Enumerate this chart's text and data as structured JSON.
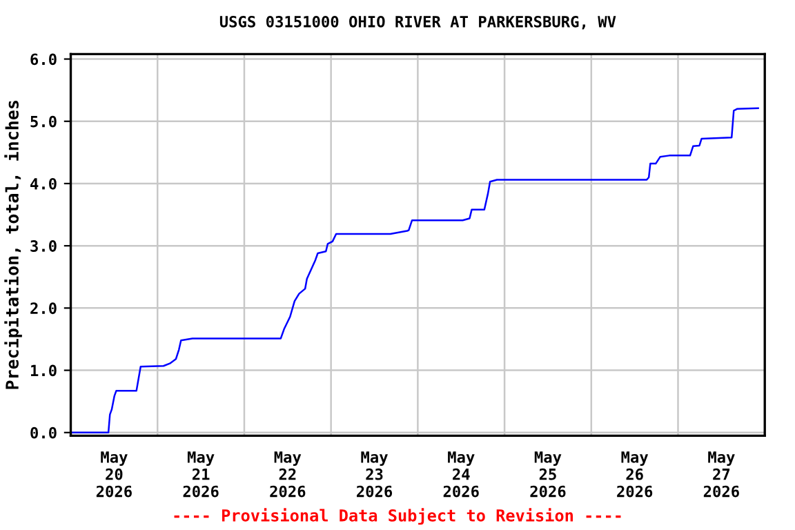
{
  "chart_data": {
    "type": "line",
    "title": "USGS 03151000 OHIO RIVER AT PARKERSBURG, WV",
    "ylabel": "Precipitation, total, inches",
    "annotations": [
      "---- Provisional Data Subject to Revision ----"
    ],
    "x": [
      "2026-05-20T00:15",
      "2026-05-20T10:25",
      "2026-05-20T10:50",
      "2026-05-20T11:20",
      "2026-05-20T12:05",
      "2026-05-20T12:35",
      "2026-05-20T18:10",
      "2026-05-20T18:35",
      "2026-05-20T19:20",
      "2026-05-21T01:40",
      "2026-05-21T03:25",
      "2026-05-21T05:05",
      "2026-05-21T05:55",
      "2026-05-21T06:30",
      "2026-05-21T09:40",
      "2026-05-22T10:05",
      "2026-05-22T11:00",
      "2026-05-22T12:40",
      "2026-05-22T13:55",
      "2026-05-22T15:10",
      "2026-05-22T16:50",
      "2026-05-22T17:20",
      "2026-05-22T18:30",
      "2026-05-22T19:40",
      "2026-05-22T20:20",
      "2026-05-22T22:35",
      "2026-05-22T23:05",
      "2026-05-23T00:25",
      "2026-05-23T01:25",
      "2026-05-23T16:25",
      "2026-05-23T21:05",
      "2026-05-23T21:30",
      "2026-05-23T22:25",
      "2026-05-24T12:25",
      "2026-05-24T14:20",
      "2026-05-24T14:55",
      "2026-05-24T18:25",
      "2026-05-24T19:25",
      "2026-05-24T20:00",
      "2026-05-24T21:55",
      "2026-05-26T15:20",
      "2026-05-26T15:55",
      "2026-05-26T16:20",
      "2026-05-26T17:50",
      "2026-05-26T19:05",
      "2026-05-26T21:35",
      "2026-05-27T03:20",
      "2026-05-27T04:10",
      "2026-05-27T05:55",
      "2026-05-27T06:30",
      "2026-05-27T14:50",
      "2026-05-27T15:25",
      "2026-05-27T16:25",
      "2026-05-27T22:10"
    ],
    "series": [
      {
        "color": "#0000ff",
        "values": [
          0,
          0,
          0.29,
          0.37,
          0.59,
          0.67,
          0.67,
          0.81,
          1.06,
          1.07,
          1.11,
          1.18,
          1.33,
          1.48,
          1.51,
          1.51,
          1.66,
          1.86,
          2.11,
          2.23,
          2.31,
          2.47,
          2.62,
          2.77,
          2.88,
          2.91,
          3.03,
          3.07,
          3.19,
          3.19,
          3.24,
          3.25,
          3.41,
          3.41,
          3.44,
          3.58,
          3.58,
          3.84,
          4.03,
          4.06,
          4.06,
          4.1,
          4.32,
          4.32,
          4.43,
          4.45,
          4.45,
          4.6,
          4.61,
          4.72,
          4.74,
          5.17,
          5.2,
          5.21
        ]
      }
    ],
    "xlim": [
      "2026-05-20T00:00",
      "2026-05-28T00:00"
    ],
    "xticks": [
      {
        "value": "2026-05-20T12:00",
        "label": "May\n20\n2026"
      },
      {
        "value": "2026-05-21T12:00",
        "label": "May\n21\n2026"
      },
      {
        "value": "2026-05-22T12:00",
        "label": "May\n22\n2026"
      },
      {
        "value": "2026-05-23T12:00",
        "label": "May\n23\n2026"
      },
      {
        "value": "2026-05-24T12:00",
        "label": "May\n24\n2026"
      },
      {
        "value": "2026-05-25T12:00",
        "label": "May\n25\n2026"
      },
      {
        "value": "2026-05-26T12:00",
        "label": "May\n26\n2026"
      },
      {
        "value": "2026-05-27T12:00",
        "label": "May\n27\n2026"
      },
      {
        "value": "2026-05-21T00:00",
        "label": null
      },
      {
        "value": "2026-05-22T00:00",
        "label": null
      },
      {
        "value": "2026-05-23T00:00",
        "label": null
      },
      {
        "value": "2026-05-24T00:00",
        "label": null
      },
      {
        "value": "2026-05-25T00:00",
        "label": null
      },
      {
        "value": "2026-05-26T00:00",
        "label": null
      },
      {
        "value": "2026-05-27T00:00",
        "label": null
      }
    ],
    "ylim": [
      -0.05,
      6.08
    ],
    "yticks": [
      {
        "value": 0,
        "label": "0.0"
      },
      {
        "value": 1,
        "label": "1.0"
      },
      {
        "value": 2,
        "label": "2.0"
      },
      {
        "value": 3,
        "label": "3.0"
      },
      {
        "value": 4,
        "label": "4.0"
      },
      {
        "value": 5,
        "label": "5.0"
      },
      {
        "value": 6,
        "label": "6.0"
      }
    ],
    "grid": true
  }
}
